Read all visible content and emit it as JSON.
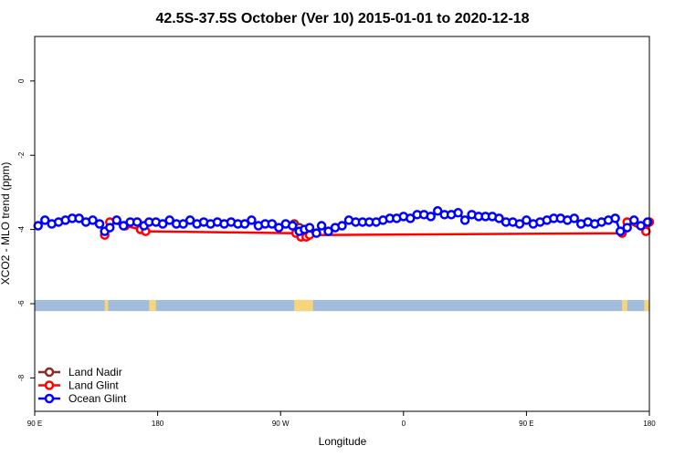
{
  "chart_data": {
    "type": "line",
    "title": "42.5S-37.5S October (Ver 10)   2015-01-01 to 2020-12-18",
    "xlabel": "Longitude",
    "ylabel": "XCO2 - MLO trend (ppm)",
    "xlim": [
      90,
      450
    ],
    "ylim": [
      -8.9,
      1.2
    ],
    "x_ticks": [
      {
        "value": 90,
        "label": "90 E"
      },
      {
        "value": 162,
        "label": "180"
      },
      {
        "value": 234,
        "label": "90 W"
      },
      {
        "value": 306,
        "label": "0"
      },
      {
        "value": 378,
        "label": "90 E"
      },
      {
        "value": 450,
        "label": "180"
      }
    ],
    "y_ticks": [
      0,
      -2,
      -4,
      -6,
      -8
    ],
    "legend_position": "bottom-left",
    "series": [
      {
        "name": "Land Nadir",
        "color": "#8b2a2a",
        "points": [
          [
            242,
            -3.85
          ],
          [
            245,
            -3.95
          ]
        ]
      },
      {
        "name": "Land Glint",
        "color": "#ff0000",
        "points": [
          [
            131,
            -4.15
          ],
          [
            134,
            -3.8
          ],
          [
            143,
            -3.9
          ],
          [
            152,
            -4.0
          ],
          [
            155,
            -4.05
          ],
          [
            243,
            -4.1
          ],
          [
            246,
            -4.2
          ],
          [
            249,
            -4.2
          ],
          [
            251,
            -4.15
          ],
          [
            434,
            -4.1
          ],
          [
            437,
            -3.8
          ],
          [
            448,
            -4.05
          ],
          [
            450,
            -3.8
          ]
        ]
      },
      {
        "name": "Ocean Glint",
        "color": "#0000ff",
        "points": [
          [
            92,
            -3.9
          ],
          [
            96,
            -3.75
          ],
          [
            100,
            -3.85
          ],
          [
            104,
            -3.8
          ],
          [
            108,
            -3.75
          ],
          [
            112,
            -3.7
          ],
          [
            116,
            -3.7
          ],
          [
            120,
            -3.8
          ],
          [
            124,
            -3.75
          ],
          [
            128,
            -3.85
          ],
          [
            131,
            -4.05
          ],
          [
            134,
            -3.95
          ],
          [
            138,
            -3.75
          ],
          [
            142,
            -3.9
          ],
          [
            146,
            -3.8
          ],
          [
            150,
            -3.8
          ],
          [
            154,
            -3.9
          ],
          [
            157,
            -3.8
          ],
          [
            161,
            -3.8
          ],
          [
            165,
            -3.85
          ],
          [
            169,
            -3.75
          ],
          [
            173,
            -3.85
          ],
          [
            177,
            -3.85
          ],
          [
            181,
            -3.75
          ],
          [
            185,
            -3.85
          ],
          [
            189,
            -3.8
          ],
          [
            193,
            -3.85
          ],
          [
            197,
            -3.8
          ],
          [
            201,
            -3.85
          ],
          [
            205,
            -3.8
          ],
          [
            209,
            -3.85
          ],
          [
            213,
            -3.85
          ],
          [
            217,
            -3.75
          ],
          [
            221,
            -3.9
          ],
          [
            225,
            -3.85
          ],
          [
            229,
            -3.85
          ],
          [
            233,
            -3.95
          ],
          [
            237,
            -3.85
          ],
          [
            241,
            -3.9
          ],
          [
            245,
            -4.05
          ],
          [
            248,
            -4.0
          ],
          [
            251,
            -3.95
          ],
          [
            255,
            -4.1
          ],
          [
            258,
            -3.9
          ],
          [
            262,
            -4.05
          ],
          [
            266,
            -3.95
          ],
          [
            270,
            -3.9
          ],
          [
            274,
            -3.75
          ],
          [
            278,
            -3.8
          ],
          [
            282,
            -3.8
          ],
          [
            286,
            -3.8
          ],
          [
            290,
            -3.8
          ],
          [
            294,
            -3.75
          ],
          [
            298,
            -3.7
          ],
          [
            302,
            -3.7
          ],
          [
            306,
            -3.65
          ],
          [
            310,
            -3.7
          ],
          [
            314,
            -3.6
          ],
          [
            318,
            -3.6
          ],
          [
            322,
            -3.65
          ],
          [
            326,
            -3.5
          ],
          [
            330,
            -3.6
          ],
          [
            334,
            -3.6
          ],
          [
            338,
            -3.55
          ],
          [
            342,
            -3.75
          ],
          [
            346,
            -3.6
          ],
          [
            350,
            -3.65
          ],
          [
            354,
            -3.65
          ],
          [
            358,
            -3.65
          ],
          [
            362,
            -3.7
          ],
          [
            366,
            -3.8
          ],
          [
            370,
            -3.8
          ],
          [
            374,
            -3.85
          ],
          [
            378,
            -3.75
          ],
          [
            382,
            -3.85
          ],
          [
            386,
            -3.8
          ],
          [
            390,
            -3.75
          ],
          [
            394,
            -3.7
          ],
          [
            398,
            -3.7
          ],
          [
            402,
            -3.75
          ],
          [
            406,
            -3.7
          ],
          [
            410,
            -3.85
          ],
          [
            414,
            -3.8
          ],
          [
            418,
            -3.85
          ],
          [
            422,
            -3.8
          ],
          [
            426,
            -3.75
          ],
          [
            430,
            -3.7
          ],
          [
            433,
            -4.05
          ],
          [
            437,
            -3.95
          ],
          [
            441,
            -3.75
          ],
          [
            445,
            -3.9
          ],
          [
            449,
            -3.8
          ]
        ]
      }
    ],
    "land_ocean_bar": {
      "y_range": [
        -6.2,
        -5.9
      ],
      "ocean_color": "#a3bcdc",
      "land_color": "#f7d57a",
      "land_segments": [
        [
          131,
          133
        ],
        [
          157,
          161
        ],
        [
          242,
          253
        ],
        [
          434,
          437
        ],
        [
          447,
          450
        ]
      ]
    }
  }
}
